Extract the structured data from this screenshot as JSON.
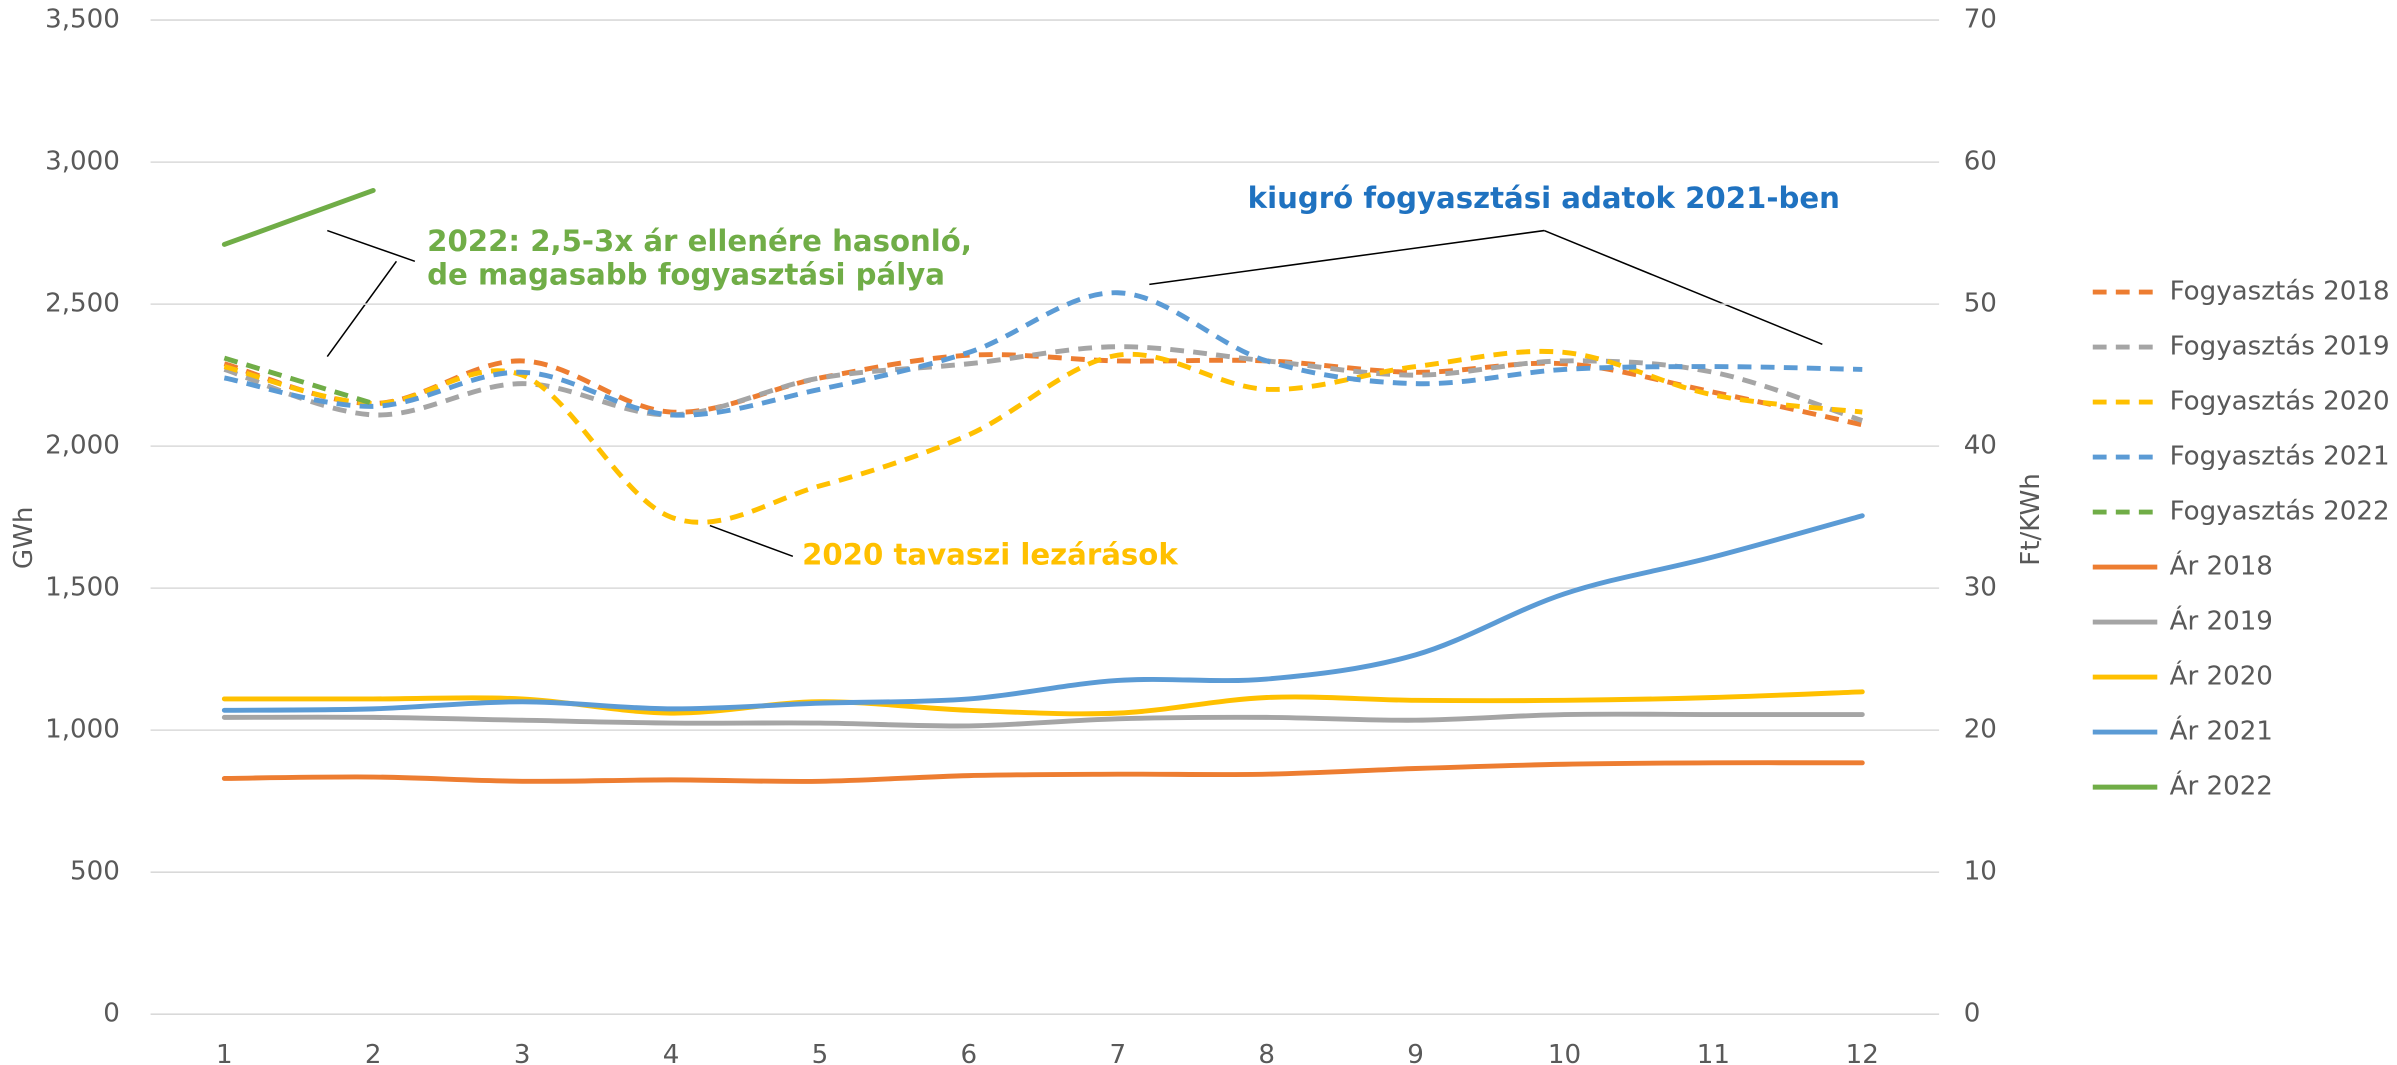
{
  "chart_data": {
    "type": "line",
    "categories": [
      "1",
      "2",
      "3",
      "4",
      "5",
      "6",
      "7",
      "8",
      "9",
      "10",
      "11",
      "12"
    ],
    "ylabel": "GWh",
    "y2label": "Ft/KWh",
    "ylim": [
      0,
      3500
    ],
    "yticks": [
      0,
      500,
      {
        "value": 1000,
        "label": "1,000"
      },
      {
        "value": 1500,
        "label": "1,500"
      },
      {
        "value": 2000,
        "label": "2,000"
      },
      {
        "value": 2500,
        "label": "2,500"
      },
      {
        "value": 3000,
        "label": "3,000"
      },
      {
        "value": 3500,
        "label": "3,500"
      }
    ],
    "y2lim": [
      0,
      70
    ],
    "y2ticks": [
      0,
      10,
      20,
      30,
      40,
      50,
      60,
      70
    ],
    "grid": true,
    "legend": "right",
    "series": [
      {
        "name": "Fogyasztás 2018",
        "color": "#ed7d31",
        "dash": true,
        "values": [
          2290,
          2150,
          2300,
          2120,
          2240,
          2320,
          2300,
          2300,
          2260,
          2290,
          2190,
          2075
        ]
      },
      {
        "name": "Fogyasztás 2019",
        "color": "#a5a5a5",
        "dash": true,
        "values": [
          2270,
          2110,
          2220,
          2110,
          2240,
          2290,
          2350,
          2300,
          2250,
          2300,
          2260,
          2090
        ]
      },
      {
        "name": "Fogyasztás 2020",
        "color": "#ffc000",
        "dash": true,
        "values": [
          2280,
          2150,
          2250,
          1750,
          1860,
          2040,
          2320,
          2200,
          2280,
          2330,
          2180,
          2120
        ]
      },
      {
        "name": "Fogyasztás 2021",
        "color": "#5b9bd5",
        "dash": true,
        "values": [
          2240,
          2140,
          2260,
          2110,
          2200,
          2330,
          2540,
          2300,
          2220,
          2270,
          2280,
          2270
        ]
      },
      {
        "name": "Fogyasztás 2022",
        "color": "#70ad47",
        "dash": true,
        "values": [
          2310,
          2150,
          null,
          null,
          null,
          null,
          null,
          null,
          null,
          null,
          null,
          null
        ]
      },
      {
        "name": "Ár 2018",
        "color": "#ed7d31",
        "axis": "y2",
        "values": [
          16.6,
          16.7,
          16.4,
          16.5,
          16.4,
          16.8,
          16.9,
          16.9,
          17.3,
          17.6,
          17.7,
          17.7
        ]
      },
      {
        "name": "Ár 2019",
        "color": "#a5a5a5",
        "axis": "y2",
        "values": [
          20.9,
          20.9,
          20.7,
          20.5,
          20.5,
          20.3,
          20.8,
          20.9,
          20.7,
          21.1,
          21.1,
          21.1
        ]
      },
      {
        "name": "Ár 2020",
        "color": "#ffc000",
        "axis": "y2",
        "values": [
          22.2,
          22.2,
          22.2,
          21.2,
          22.0,
          21.4,
          21.2,
          22.3,
          22.1,
          22.1,
          22.3,
          22.7
        ]
      },
      {
        "name": "Ár 2021",
        "color": "#5b9bd5",
        "axis": "y2",
        "values": [
          21.4,
          21.5,
          22.0,
          21.5,
          21.9,
          22.2,
          23.5,
          23.6,
          25.3,
          29.6,
          32.2,
          35.1
        ]
      },
      {
        "name": "Ár 2022",
        "color": "#70ad47",
        "axis": "y2",
        "values": [
          54.2,
          58.0,
          null,
          null,
          null,
          null,
          null,
          null,
          null,
          null,
          null,
          null
        ]
      }
    ],
    "annotations": [
      {
        "text": [
          "2022: 2,5-3x ár ellenére hasonló,",
          "de magasabb fogyasztási pálya"
        ],
        "color": "#70ad47"
      },
      {
        "text": [
          "kiugró fogyasztási adatok 2021-ben"
        ],
        "color": "#1f72c0"
      },
      {
        "text": [
          "2020 tavaszi lezárások"
        ],
        "color": "#ffc000"
      }
    ]
  }
}
